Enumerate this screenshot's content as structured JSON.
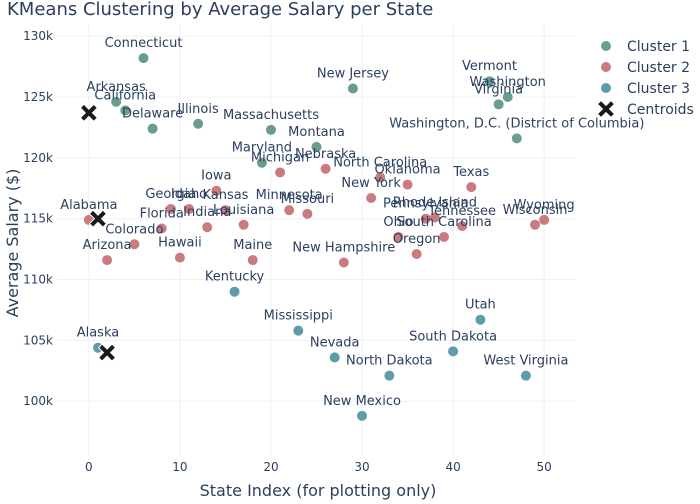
{
  "chart_data": {
    "type": "scatter",
    "title": "KMeans Clustering by Average Salary per State",
    "xlabel": "State Index (for plotting only)",
    "ylabel": "Average Salary ($)",
    "xlim": [
      -3.5,
      53.5
    ],
    "ylim": [
      95500,
      131000
    ],
    "xticks": [
      0,
      10,
      20,
      30,
      40,
      50
    ],
    "yticks": [
      100000,
      105000,
      110000,
      115000,
      120000,
      125000,
      130000
    ],
    "ytick_labels": [
      "100k",
      "105k",
      "110k",
      "115k",
      "120k",
      "125k",
      "130k"
    ],
    "grid": true,
    "legend_position": "top-right",
    "colors": {
      "cluster1": "#6b9e8a",
      "cluster2": "#c97b7f",
      "cluster3": "#5e9ca7",
      "centroid": "#1a1a1a",
      "text": "#2a3f5f",
      "grid": "#eef0f5"
    },
    "series": [
      {
        "name": "Cluster 1",
        "color": "#6b9e8a",
        "points": [
          {
            "x": 6,
            "y": 128200,
            "label": "Connecticut"
          },
          {
            "x": 3,
            "y": 124600,
            "label": "Arkansas"
          },
          {
            "x": 4,
            "y": 123900,
            "label": "California"
          },
          {
            "x": 7,
            "y": 122400,
            "label": "Delaware"
          },
          {
            "x": 12,
            "y": 122800,
            "label": "Illinois"
          },
          {
            "x": 20,
            "y": 122300,
            "label": "Massachusetts"
          },
          {
            "x": 29,
            "y": 125700,
            "label": "New Jersey"
          },
          {
            "x": 25,
            "y": 120900,
            "label": "Montana"
          },
          {
            "x": 44,
            "y": 126300,
            "label": "Vermont"
          },
          {
            "x": 46,
            "y": 125000,
            "label": "Washington"
          },
          {
            "x": 45,
            "y": 124400,
            "label": "Virginia"
          },
          {
            "x": 47,
            "y": 121600,
            "label": "Washington, D.C. (District of Columbia)"
          },
          {
            "x": 19,
            "y": 119600,
            "label": "Maryland"
          }
        ]
      },
      {
        "name": "Cluster 2",
        "color": "#c97b7f",
        "points": [
          {
            "x": 0,
            "y": 114900,
            "label": "Alabama"
          },
          {
            "x": 2,
            "y": 111600,
            "label": "Arizona"
          },
          {
            "x": 5,
            "y": 112900,
            "label": "Colorado"
          },
          {
            "x": 8,
            "y": 114200,
            "label": "Florida"
          },
          {
            "x": 9,
            "y": 115800,
            "label": "Georgia"
          },
          {
            "x": 10,
            "y": 111800,
            "label": "Hawaii"
          },
          {
            "x": 11,
            "y": 115800,
            "label": "Idaho"
          },
          {
            "x": 13,
            "y": 114300,
            "label": "Indiana"
          },
          {
            "x": 14,
            "y": 117300,
            "label": "Iowa"
          },
          {
            "x": 15,
            "y": 115700,
            "label": "Kansas"
          },
          {
            "x": 17,
            "y": 114500,
            "label": "Louisiana"
          },
          {
            "x": 18,
            "y": 111600,
            "label": "Maine"
          },
          {
            "x": 21,
            "y": 118800,
            "label": "Michigan"
          },
          {
            "x": 22,
            "y": 115700,
            "label": "Minnesota"
          },
          {
            "x": 24,
            "y": 115400,
            "label": "Missouri"
          },
          {
            "x": 26,
            "y": 119100,
            "label": "Nebraska"
          },
          {
            "x": 28,
            "y": 111400,
            "label": "New Hampshire"
          },
          {
            "x": 31,
            "y": 116700,
            "label": "New York"
          },
          {
            "x": 32,
            "y": 118400,
            "label": "North Carolina"
          },
          {
            "x": 35,
            "y": 117800,
            "label": "Oklahoma"
          },
          {
            "x": 36,
            "y": 112100,
            "label": "Oregon"
          },
          {
            "x": 34,
            "y": 113500,
            "label": "Ohio"
          },
          {
            "x": 37,
            "y": 115000,
            "label": "Pennsylvania"
          },
          {
            "x": 38,
            "y": 115100,
            "label": "Rhode Island"
          },
          {
            "x": 39,
            "y": 113500,
            "label": "South Carolina"
          },
          {
            "x": 41,
            "y": 114400,
            "label": "Tennessee"
          },
          {
            "x": 42,
            "y": 117600,
            "label": "Texas"
          },
          {
            "x": 49,
            "y": 114500,
            "label": "Wisconsin"
          },
          {
            "x": 50,
            "y": 114900,
            "label": "Wyoming"
          }
        ]
      },
      {
        "name": "Cluster 3",
        "color": "#5e9ca7",
        "points": [
          {
            "x": 1,
            "y": 104400,
            "label": "Alaska"
          },
          {
            "x": 16,
            "y": 109000,
            "label": "Kentucky"
          },
          {
            "x": 23,
            "y": 105800,
            "label": "Mississippi"
          },
          {
            "x": 27,
            "y": 103600,
            "label": "Nevada"
          },
          {
            "x": 30,
            "y": 98800,
            "label": "New Mexico"
          },
          {
            "x": 33,
            "y": 102100,
            "label": "North Dakota"
          },
          {
            "x": 40,
            "y": 104100,
            "label": "South Dakota"
          },
          {
            "x": 43,
            "y": 106700,
            "label": "Utah"
          },
          {
            "x": 48,
            "y": 102100,
            "label": "West Virginia"
          }
        ]
      },
      {
        "name": "Centroids",
        "color": "#1a1a1a",
        "marker": "x",
        "points": [
          {
            "x": 0,
            "y": 123700
          },
          {
            "x": 1,
            "y": 115000
          },
          {
            "x": 2,
            "y": 104000
          }
        ]
      }
    ]
  }
}
